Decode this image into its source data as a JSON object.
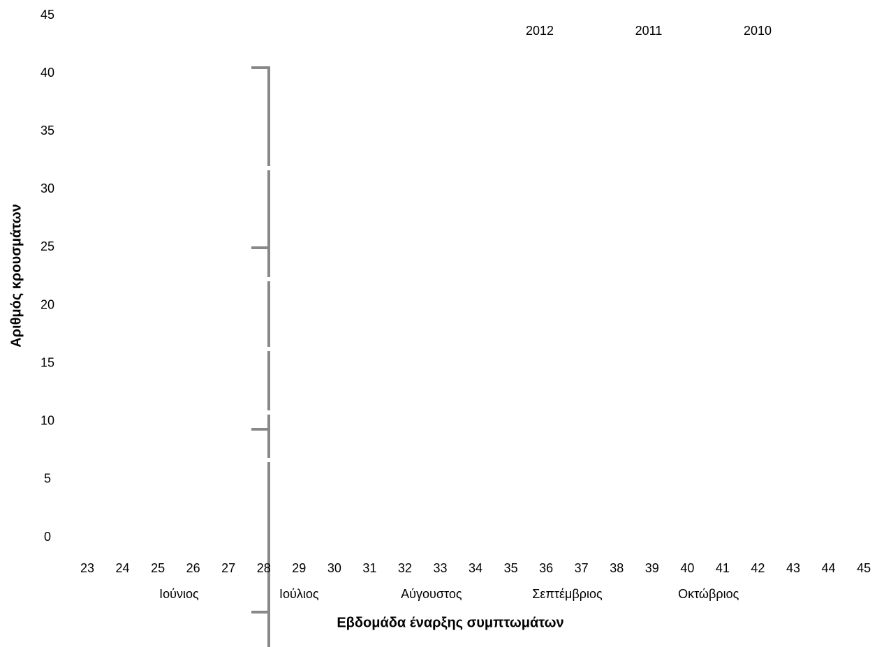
{
  "chart_data": {
    "type": "bar",
    "y_label": "Αριθμός κρουσμάτων",
    "x_label": "Εβδομάδα έναρξης συμπτωμάτων",
    "categories": [
      "23",
      "24",
      "25",
      "26",
      "27",
      "28",
      "29",
      "30",
      "31",
      "32",
      "33",
      "34",
      "35",
      "36",
      "37",
      "38",
      "39",
      "40",
      "41",
      "42",
      "43",
      "44",
      "45"
    ],
    "month_labels": [
      "Ιούνιος",
      "Ιούλιος",
      "Αύγουστος",
      "Σεπτέμβριος",
      "Οκτώβριος"
    ],
    "series": [
      {
        "name": "2012",
        "values": [
          null,
          null,
          null,
          null,
          null,
          null,
          null,
          null,
          null,
          null,
          null,
          null,
          null,
          null,
          null,
          null,
          null,
          null,
          null,
          null,
          null,
          null,
          null
        ]
      },
      {
        "name": "2011",
        "values": [
          null,
          null,
          null,
          null,
          null,
          null,
          null,
          null,
          null,
          null,
          null,
          null,
          null,
          null,
          null,
          null,
          null,
          null,
          null,
          null,
          null,
          null,
          null
        ]
      },
      {
        "name": "2010",
        "values": [
          null,
          null,
          null,
          null,
          null,
          null,
          null,
          null,
          null,
          null,
          null,
          null,
          null,
          null,
          null,
          null,
          null,
          null,
          null,
          null,
          null,
          null,
          null
        ]
      }
    ],
    "ylim": [
      0,
      45
    ],
    "yticks": [
      0,
      5,
      10,
      15,
      20,
      25,
      30,
      35,
      40,
      45
    ],
    "grid": false
  }
}
